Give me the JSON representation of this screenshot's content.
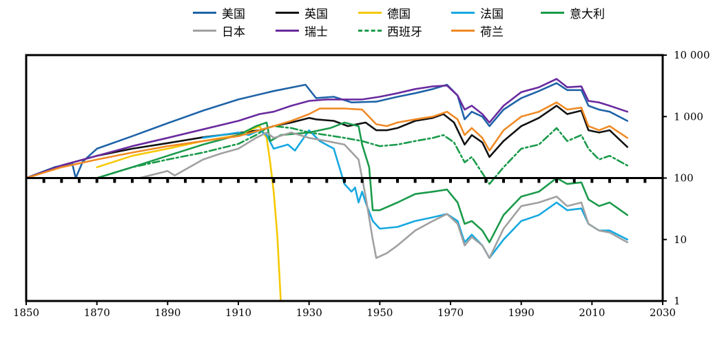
{
  "chart_data": {
    "type": "line",
    "title": "",
    "xlabel": "",
    "ylabel": "",
    "y_scale": "log",
    "xlim": [
      1850,
      2030
    ],
    "ylim": [
      1,
      10000
    ],
    "x_ticks": [
      1850,
      1870,
      1890,
      1910,
      1930,
      1950,
      1970,
      1990,
      2010,
      2030
    ],
    "x_tick_labels": [
      "1850",
      "1870",
      "1890",
      "1910",
      "1930",
      "1950",
      "1970",
      "1990",
      "2010",
      "2030"
    ],
    "y_ticks": [
      1,
      10,
      100,
      1000,
      10000
    ],
    "y_tick_labels": [
      "1",
      "10",
      "100",
      "1 000",
      "10 000"
    ],
    "baseline": 100,
    "legend_position": "top",
    "series": [
      {
        "name": "美国",
        "color": "#1f63a8",
        "style": "solid",
        "points": [
          [
            1850,
            100
          ],
          [
            1858,
            150
          ],
          [
            1863,
            175
          ],
          [
            1864,
            100
          ],
          [
            1866,
            185
          ],
          [
            1870,
            300
          ],
          [
            1880,
            480
          ],
          [
            1890,
            780
          ],
          [
            1900,
            1250
          ],
          [
            1910,
            1900
          ],
          [
            1920,
            2600
          ],
          [
            1929,
            3300
          ],
          [
            1932,
            2000
          ],
          [
            1937,
            2100
          ],
          [
            1942,
            1700
          ],
          [
            1949,
            1750
          ],
          [
            1955,
            2100
          ],
          [
            1960,
            2400
          ],
          [
            1965,
            2800
          ],
          [
            1969,
            3300
          ],
          [
            1972,
            2200
          ],
          [
            1974,
            900
          ],
          [
            1976,
            1200
          ],
          [
            1979,
            1000
          ],
          [
            1981,
            700
          ],
          [
            1985,
            1300
          ],
          [
            1990,
            2000
          ],
          [
            1995,
            2600
          ],
          [
            2000,
            3500
          ],
          [
            2003,
            2700
          ],
          [
            2007,
            2700
          ],
          [
            2009,
            1500
          ],
          [
            2012,
            1300
          ],
          [
            2015,
            1200
          ],
          [
            2020,
            850
          ]
        ]
      },
      {
        "name": "英国",
        "color": "#111111",
        "style": "solid",
        "points": [
          [
            1850,
            100
          ],
          [
            1860,
            160
          ],
          [
            1870,
            230
          ],
          [
            1880,
            300
          ],
          [
            1890,
            370
          ],
          [
            1900,
            460
          ],
          [
            1910,
            540
          ],
          [
            1916,
            600
          ],
          [
            1920,
            700
          ],
          [
            1925,
            800
          ],
          [
            1930,
            950
          ],
          [
            1932,
            900
          ],
          [
            1937,
            850
          ],
          [
            1941,
            700
          ],
          [
            1946,
            800
          ],
          [
            1949,
            600
          ],
          [
            1952,
            600
          ],
          [
            1955,
            650
          ],
          [
            1960,
            850
          ],
          [
            1965,
            950
          ],
          [
            1968,
            1100
          ],
          [
            1971,
            800
          ],
          [
            1974,
            350
          ],
          [
            1976,
            500
          ],
          [
            1979,
            380
          ],
          [
            1981,
            220
          ],
          [
            1985,
            400
          ],
          [
            1990,
            700
          ],
          [
            1995,
            950
          ],
          [
            2000,
            1500
          ],
          [
            2003,
            1100
          ],
          [
            2007,
            1250
          ],
          [
            2009,
            600
          ],
          [
            2012,
            550
          ],
          [
            2015,
            600
          ],
          [
            2020,
            320
          ]
        ]
      },
      {
        "name": "德国",
        "color": "#f5c800",
        "style": "solid",
        "points": [
          [
            1870,
            150
          ],
          [
            1880,
            230
          ],
          [
            1890,
            300
          ],
          [
            1900,
            400
          ],
          [
            1910,
            500
          ],
          [
            1916,
            700
          ],
          [
            1918,
            450
          ],
          [
            1919,
            180
          ],
          [
            1920,
            60
          ],
          [
            1921,
            12
          ],
          [
            1922,
            1
          ]
        ]
      },
      {
        "name": "法国",
        "color": "#16a8e0",
        "style": "solid",
        "points": [
          [
            1900,
            450
          ],
          [
            1910,
            550
          ],
          [
            1913,
            500
          ],
          [
            1916,
            600
          ],
          [
            1918,
            500
          ],
          [
            1920,
            300
          ],
          [
            1924,
            350
          ],
          [
            1926,
            280
          ],
          [
            1930,
            600
          ],
          [
            1933,
            400
          ],
          [
            1937,
            300
          ],
          [
            1940,
            80
          ],
          [
            1942,
            60
          ],
          [
            1943,
            70
          ],
          [
            1944,
            40
          ],
          [
            1945,
            60
          ],
          [
            1946,
            40
          ],
          [
            1948,
            20
          ],
          [
            1950,
            15
          ],
          [
            1955,
            16
          ],
          [
            1960,
            20
          ],
          [
            1965,
            23
          ],
          [
            1969,
            26
          ],
          [
            1972,
            20
          ],
          [
            1974,
            9
          ],
          [
            1976,
            12
          ],
          [
            1979,
            8
          ],
          [
            1981,
            5
          ],
          [
            1985,
            10
          ],
          [
            1990,
            20
          ],
          [
            1995,
            25
          ],
          [
            2000,
            40
          ],
          [
            2003,
            30
          ],
          [
            2007,
            32
          ],
          [
            2009,
            18
          ],
          [
            2012,
            14
          ],
          [
            2015,
            14
          ],
          [
            2020,
            10
          ]
        ]
      },
      {
        "name": "意大利",
        "color": "#1a9a4a",
        "style": "solid",
        "points": [
          [
            1870,
            100
          ],
          [
            1880,
            150
          ],
          [
            1890,
            230
          ],
          [
            1900,
            350
          ],
          [
            1910,
            500
          ],
          [
            1915,
            700
          ],
          [
            1918,
            800
          ],
          [
            1919,
            400
          ],
          [
            1922,
            500
          ],
          [
            1930,
            550
          ],
          [
            1936,
            650
          ],
          [
            1940,
            800
          ],
          [
            1944,
            700
          ],
          [
            1945,
            350
          ],
          [
            1947,
            150
          ],
          [
            1948,
            30
          ],
          [
            1950,
            30
          ],
          [
            1955,
            40
          ],
          [
            1960,
            55
          ],
          [
            1965,
            60
          ],
          [
            1969,
            65
          ],
          [
            1972,
            40
          ],
          [
            1974,
            18
          ],
          [
            1976,
            20
          ],
          [
            1979,
            14
          ],
          [
            1981,
            9
          ],
          [
            1985,
            25
          ],
          [
            1990,
            50
          ],
          [
            1995,
            60
          ],
          [
            2000,
            100
          ],
          [
            2003,
            80
          ],
          [
            2007,
            85
          ],
          [
            2009,
            45
          ],
          [
            2012,
            35
          ],
          [
            2015,
            40
          ],
          [
            2020,
            25
          ]
        ]
      },
      {
        "name": "日本",
        "color": "#a0a0a0",
        "style": "solid",
        "points": [
          [
            1882,
            100
          ],
          [
            1890,
            130
          ],
          [
            1892,
            110
          ],
          [
            1900,
            200
          ],
          [
            1905,
            250
          ],
          [
            1910,
            300
          ],
          [
            1915,
            450
          ],
          [
            1918,
            550
          ],
          [
            1920,
            450
          ],
          [
            1925,
            550
          ],
          [
            1930,
            450
          ],
          [
            1935,
            400
          ],
          [
            1940,
            350
          ],
          [
            1944,
            200
          ],
          [
            1946,
            50
          ],
          [
            1948,
            10
          ],
          [
            1949,
            5
          ],
          [
            1952,
            6
          ],
          [
            1955,
            8
          ],
          [
            1960,
            14
          ],
          [
            1965,
            20
          ],
          [
            1969,
            26
          ],
          [
            1972,
            18
          ],
          [
            1974,
            8
          ],
          [
            1976,
            11
          ],
          [
            1979,
            8
          ],
          [
            1981,
            5
          ],
          [
            1985,
            15
          ],
          [
            1990,
            35
          ],
          [
            1995,
            40
          ],
          [
            2000,
            50
          ],
          [
            2003,
            35
          ],
          [
            2007,
            40
          ],
          [
            2009,
            18
          ],
          [
            2012,
            14
          ],
          [
            2015,
            13
          ],
          [
            2020,
            9
          ]
        ]
      },
      {
        "name": "瑞士",
        "color": "#6a2a9e",
        "style": "solid",
        "points": [
          [
            1850,
            100
          ],
          [
            1860,
            160
          ],
          [
            1870,
            230
          ],
          [
            1880,
            330
          ],
          [
            1890,
            450
          ],
          [
            1900,
            620
          ],
          [
            1910,
            850
          ],
          [
            1916,
            1100
          ],
          [
            1920,
            1200
          ],
          [
            1925,
            1500
          ],
          [
            1930,
            1800
          ],
          [
            1935,
            1900
          ],
          [
            1940,
            1900
          ],
          [
            1945,
            1900
          ],
          [
            1950,
            2100
          ],
          [
            1955,
            2400
          ],
          [
            1960,
            2800
          ],
          [
            1965,
            3100
          ],
          [
            1969,
            3200
          ],
          [
            1972,
            2200
          ],
          [
            1974,
            1300
          ],
          [
            1976,
            1500
          ],
          [
            1979,
            1100
          ],
          [
            1981,
            800
          ],
          [
            1985,
            1500
          ],
          [
            1990,
            2500
          ],
          [
            1995,
            3000
          ],
          [
            2000,
            4100
          ],
          [
            2003,
            3000
          ],
          [
            2007,
            3100
          ],
          [
            2009,
            1800
          ],
          [
            2012,
            1700
          ],
          [
            2015,
            1500
          ],
          [
            2020,
            1200
          ]
        ]
      },
      {
        "name": "西班牙",
        "color": "#1a9a4a",
        "style": "dashdot",
        "points": [
          [
            1870,
            100
          ],
          [
            1880,
            150
          ],
          [
            1890,
            200
          ],
          [
            1900,
            260
          ],
          [
            1910,
            360
          ],
          [
            1915,
            500
          ],
          [
            1918,
            650
          ],
          [
            1920,
            700
          ],
          [
            1925,
            650
          ],
          [
            1930,
            550
          ],
          [
            1935,
            500
          ],
          [
            1940,
            450
          ],
          [
            1945,
            400
          ],
          [
            1950,
            330
          ],
          [
            1955,
            350
          ],
          [
            1960,
            400
          ],
          [
            1965,
            450
          ],
          [
            1968,
            500
          ],
          [
            1971,
            380
          ],
          [
            1974,
            180
          ],
          [
            1976,
            220
          ],
          [
            1979,
            120
          ],
          [
            1981,
            80
          ],
          [
            1985,
            150
          ],
          [
            1990,
            300
          ],
          [
            1995,
            350
          ],
          [
            2000,
            650
          ],
          [
            2003,
            400
          ],
          [
            2007,
            500
          ],
          [
            2009,
            300
          ],
          [
            2012,
            200
          ],
          [
            2015,
            230
          ],
          [
            2020,
            160
          ]
        ]
      },
      {
        "name": "荷兰",
        "color": "#f08a24",
        "style": "solid",
        "points": [
          [
            1850,
            100
          ],
          [
            1860,
            150
          ],
          [
            1870,
            200
          ],
          [
            1880,
            260
          ],
          [
            1890,
            330
          ],
          [
            1900,
            400
          ],
          [
            1910,
            480
          ],
          [
            1916,
            600
          ],
          [
            1920,
            700
          ],
          [
            1925,
            850
          ],
          [
            1930,
            1100
          ],
          [
            1933,
            1350
          ],
          [
            1940,
            1350
          ],
          [
            1945,
            1300
          ],
          [
            1949,
            750
          ],
          [
            1952,
            700
          ],
          [
            1955,
            800
          ],
          [
            1960,
            900
          ],
          [
            1965,
            1000
          ],
          [
            1969,
            1200
          ],
          [
            1972,
            900
          ],
          [
            1974,
            500
          ],
          [
            1976,
            650
          ],
          [
            1979,
            450
          ],
          [
            1981,
            280
          ],
          [
            1985,
            600
          ],
          [
            1990,
            1000
          ],
          [
            1995,
            1200
          ],
          [
            2000,
            1700
          ],
          [
            2003,
            1300
          ],
          [
            2007,
            1400
          ],
          [
            2009,
            700
          ],
          [
            2012,
            600
          ],
          [
            2015,
            700
          ],
          [
            2020,
            450
          ]
        ]
      }
    ]
  }
}
